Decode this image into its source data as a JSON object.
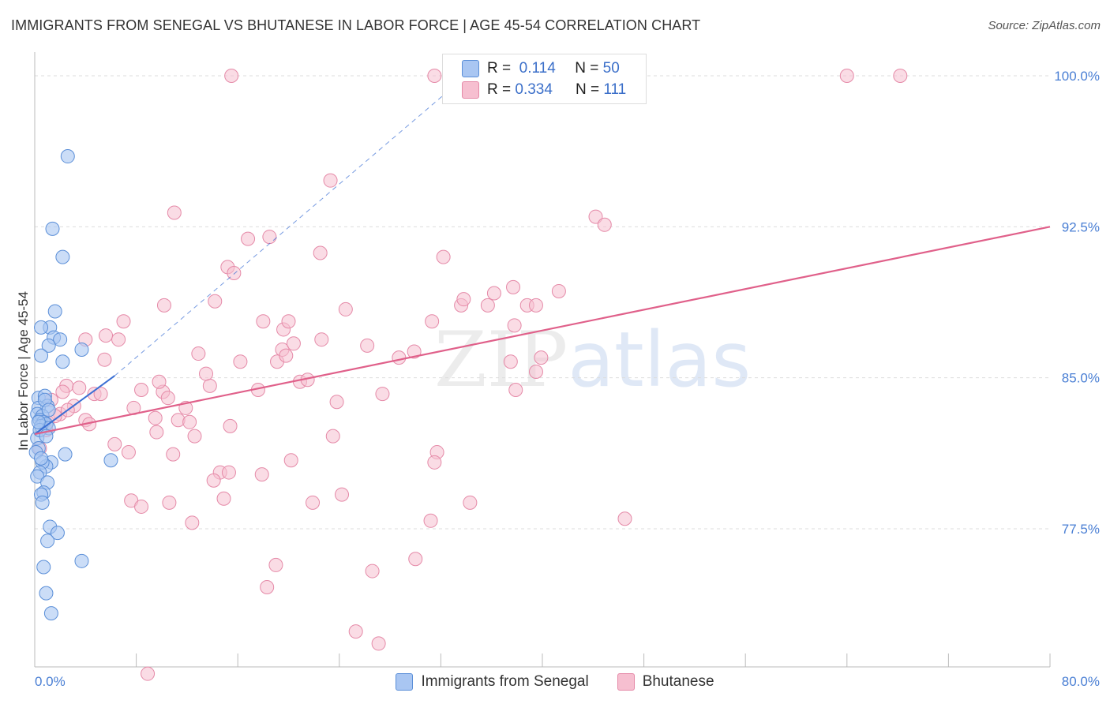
{
  "title": "IMMIGRANTS FROM SENEGAL VS BHUTANESE IN LABOR FORCE | AGE 45-54 CORRELATION CHART",
  "source": "Source: ZipAtlas.com",
  "watermark": {
    "zip": "ZIP",
    "atlas": "atlas"
  },
  "legend_top": [
    {
      "r_label": "R =",
      "r_value": "0.114",
      "n_label": "N =",
      "n_value": "50"
    },
    {
      "r_label": "R =",
      "r_value": "0.334",
      "n_label": "N =",
      "n_value": "111"
    }
  ],
  "colors": {
    "blue_fill": "#a9c6f2",
    "blue_stroke": "#5b8fd8",
    "blue_line": "#3b6fd4",
    "pink_fill": "#f6bfd0",
    "pink_stroke": "#e58aa8",
    "pink_line": "#e0608a",
    "grid": "#dddddd",
    "tick_text": "#4a7fd4"
  },
  "chart_data": {
    "type": "scatter",
    "title": "IMMIGRANTS FROM SENEGAL VS BHUTANESE IN LABOR FORCE | AGE 45-54 CORRELATION CHART",
    "xlabel": "",
    "ylabel": "In Labor Force | Age 45-54",
    "xlim": [
      0,
      80
    ],
    "ylim": [
      70.0,
      100.6
    ],
    "x_tick_labels": [
      {
        "value": 0,
        "label": "0.0%"
      },
      {
        "value": 80,
        "label": "80.0%"
      }
    ],
    "y_tick_labels": [
      {
        "value": 77.5,
        "label": "77.5%"
      },
      {
        "value": 85.0,
        "label": "85.0%"
      },
      {
        "value": 92.5,
        "label": "92.5%"
      },
      {
        "value": 100.0,
        "label": "100.0%"
      }
    ],
    "series": [
      {
        "name": "Immigrants from Senegal",
        "color": "blue",
        "trend": {
          "x0": 0,
          "y0": 82.2,
          "x1": 6.3,
          "y1": 85.1,
          "dashed_to_x": 34,
          "dashed_to_y": 100.0
        },
        "points": [
          [
            2.6,
            96.0
          ],
          [
            1.4,
            92.4
          ],
          [
            2.2,
            91.0
          ],
          [
            1.6,
            88.3
          ],
          [
            1.2,
            87.5
          ],
          [
            0.5,
            87.5
          ],
          [
            1.5,
            87.0
          ],
          [
            2.0,
            86.9
          ],
          [
            1.1,
            86.6
          ],
          [
            3.7,
            86.4
          ],
          [
            0.5,
            86.1
          ],
          [
            2.2,
            85.8
          ],
          [
            0.3,
            84.0
          ],
          [
            0.8,
            84.1
          ],
          [
            1.0,
            83.6
          ],
          [
            0.3,
            83.5
          ],
          [
            0.2,
            83.2
          ],
          [
            0.6,
            83.1
          ],
          [
            0.4,
            82.9
          ],
          [
            0.7,
            82.8
          ],
          [
            0.9,
            82.7
          ],
          [
            0.5,
            82.6
          ],
          [
            1.1,
            82.5
          ],
          [
            0.2,
            82.0
          ],
          [
            0.3,
            81.5
          ],
          [
            0.1,
            81.3
          ],
          [
            2.4,
            81.2
          ],
          [
            6.0,
            80.9
          ],
          [
            1.3,
            80.8
          ],
          [
            0.9,
            80.6
          ],
          [
            0.6,
            80.8
          ],
          [
            0.4,
            80.3
          ],
          [
            0.2,
            80.1
          ],
          [
            1.0,
            79.8
          ],
          [
            0.7,
            79.3
          ],
          [
            0.5,
            79.2
          ],
          [
            0.6,
            78.8
          ],
          [
            1.2,
            77.6
          ],
          [
            1.8,
            77.3
          ],
          [
            1.0,
            76.9
          ],
          [
            3.7,
            75.9
          ],
          [
            0.7,
            75.6
          ],
          [
            0.9,
            74.3
          ],
          [
            1.3,
            73.3
          ],
          [
            0.4,
            82.4
          ],
          [
            0.8,
            83.9
          ],
          [
            0.3,
            82.8
          ],
          [
            1.1,
            83.4
          ],
          [
            0.5,
            81.0
          ],
          [
            0.9,
            82.1
          ]
        ]
      },
      {
        "name": "Bhutanese",
        "color": "pink",
        "trend": {
          "x0": 0,
          "y0": 82.2,
          "x1": 80,
          "y1": 92.5
        },
        "points": [
          [
            15.5,
            100.0
          ],
          [
            31.5,
            100.0
          ],
          [
            64.0,
            100.0
          ],
          [
            68.2,
            100.0
          ],
          [
            23.3,
            94.8
          ],
          [
            11.0,
            93.2
          ],
          [
            44.2,
            93.0
          ],
          [
            44.9,
            92.6
          ],
          [
            18.5,
            92.0
          ],
          [
            16.8,
            91.9
          ],
          [
            22.5,
            91.2
          ],
          [
            32.2,
            91.0
          ],
          [
            15.2,
            90.5
          ],
          [
            15.7,
            90.2
          ],
          [
            37.7,
            89.5
          ],
          [
            36.2,
            89.2
          ],
          [
            10.2,
            88.6
          ],
          [
            33.6,
            88.6
          ],
          [
            35.7,
            88.6
          ],
          [
            38.8,
            88.6
          ],
          [
            39.5,
            88.6
          ],
          [
            41.3,
            89.3
          ],
          [
            18.0,
            87.8
          ],
          [
            7.0,
            87.8
          ],
          [
            19.6,
            87.4
          ],
          [
            31.3,
            87.8
          ],
          [
            37.8,
            87.6
          ],
          [
            4.0,
            86.9
          ],
          [
            5.6,
            87.1
          ],
          [
            6.6,
            86.9
          ],
          [
            19.5,
            86.4
          ],
          [
            20.4,
            86.7
          ],
          [
            22.6,
            86.9
          ],
          [
            12.9,
            86.2
          ],
          [
            29.9,
            86.3
          ],
          [
            37.5,
            85.8
          ],
          [
            5.5,
            85.9
          ],
          [
            16.2,
            85.8
          ],
          [
            19.1,
            85.8
          ],
          [
            19.8,
            86.1
          ],
          [
            39.5,
            85.3
          ],
          [
            39.9,
            86.0
          ],
          [
            2.5,
            84.6
          ],
          [
            3.5,
            84.5
          ],
          [
            4.7,
            84.2
          ],
          [
            2.2,
            84.3
          ],
          [
            8.4,
            84.4
          ],
          [
            10.1,
            84.3
          ],
          [
            13.8,
            84.6
          ],
          [
            17.6,
            84.4
          ],
          [
            20.9,
            84.8
          ],
          [
            21.5,
            84.9
          ],
          [
            27.4,
            84.2
          ],
          [
            37.9,
            84.4
          ],
          [
            1.3,
            83.9
          ],
          [
            3.1,
            83.6
          ],
          [
            5.2,
            84.2
          ],
          [
            10.5,
            84.0
          ],
          [
            11.9,
            83.5
          ],
          [
            23.8,
            83.8
          ],
          [
            2.0,
            83.2
          ],
          [
            7.8,
            83.5
          ],
          [
            9.5,
            83.0
          ],
          [
            11.3,
            82.9
          ],
          [
            4.0,
            82.9
          ],
          [
            4.3,
            82.7
          ],
          [
            12.2,
            82.8
          ],
          [
            15.4,
            82.6
          ],
          [
            9.6,
            82.3
          ],
          [
            1.0,
            82.8
          ],
          [
            0.9,
            82.4
          ],
          [
            12.6,
            82.1
          ],
          [
            23.5,
            82.1
          ],
          [
            6.3,
            81.7
          ],
          [
            7.4,
            81.3
          ],
          [
            10.9,
            81.2
          ],
          [
            31.7,
            81.3
          ],
          [
            20.2,
            80.9
          ],
          [
            31.5,
            80.8
          ],
          [
            14.6,
            80.3
          ],
          [
            15.3,
            80.3
          ],
          [
            17.9,
            80.2
          ],
          [
            14.1,
            79.9
          ],
          [
            24.2,
            79.2
          ],
          [
            14.9,
            79.0
          ],
          [
            7.6,
            78.9
          ],
          [
            8.4,
            78.6
          ],
          [
            10.6,
            78.8
          ],
          [
            21.9,
            78.8
          ],
          [
            34.3,
            78.8
          ],
          [
            46.5,
            78.0
          ],
          [
            31.2,
            77.9
          ],
          [
            12.4,
            77.8
          ],
          [
            30.0,
            76.0
          ],
          [
            19.0,
            75.7
          ],
          [
            26.6,
            75.4
          ],
          [
            18.3,
            74.6
          ],
          [
            25.3,
            72.4
          ],
          [
            27.1,
            71.8
          ],
          [
            8.9,
            70.3
          ],
          [
            0.4,
            81.5
          ],
          [
            1.6,
            83.1
          ],
          [
            2.6,
            83.4
          ],
          [
            9.8,
            84.8
          ],
          [
            13.5,
            85.2
          ],
          [
            20.0,
            87.8
          ],
          [
            28.7,
            86.0
          ],
          [
            33.8,
            88.9
          ],
          [
            24.5,
            88.4
          ],
          [
            26.2,
            86.6
          ],
          [
            14.2,
            88.8
          ]
        ]
      }
    ]
  }
}
